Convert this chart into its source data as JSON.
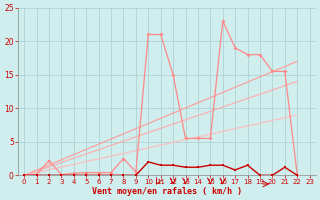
{
  "xlabel": "Vent moyen/en rafales ( km/h )",
  "xlim": [
    -0.5,
    23.5
  ],
  "ylim": [
    0,
    25
  ],
  "xticks": [
    0,
    1,
    2,
    3,
    4,
    5,
    6,
    7,
    8,
    9,
    10,
    11,
    12,
    13,
    14,
    15,
    16,
    17,
    18,
    19,
    20,
    21,
    22,
    23
  ],
  "yticks": [
    0,
    5,
    10,
    15,
    20,
    25
  ],
  "bg_color": "#d0eeee",
  "grid_color": "#aacccc",
  "light_x": [
    0,
    1,
    2,
    3,
    4,
    5,
    6,
    7,
    8,
    9,
    10,
    11,
    12,
    13,
    14,
    15,
    16,
    17,
    18,
    19,
    20,
    21,
    22
  ],
  "light_y": [
    0,
    0.1,
    2.2,
    0.1,
    0.3,
    0.4,
    0.4,
    0.4,
    2.5,
    0.5,
    21,
    21,
    15,
    5.5,
    5.5,
    5.5,
    23,
    19,
    18,
    18,
    15.5,
    15.5,
    0
  ],
  "light_color": "#ff8888",
  "dark_x": [
    0,
    1,
    2,
    3,
    4,
    5,
    6,
    7,
    8,
    9,
    10,
    11,
    12,
    13,
    14,
    15,
    16,
    17,
    18,
    19,
    20,
    21,
    22
  ],
  "dark_y": [
    0,
    0,
    0,
    0,
    0,
    0,
    0,
    0,
    0,
    0,
    2,
    1.5,
    1.5,
    1.2,
    1.2,
    1.5,
    1.5,
    0.8,
    1.5,
    0,
    0,
    1.2,
    0
  ],
  "dark_color": "#cc0000",
  "trend_lines": [
    {
      "x": [
        0,
        22
      ],
      "y": [
        0,
        17
      ],
      "color": "#ff9999"
    },
    {
      "x": [
        0,
        22
      ],
      "y": [
        0,
        14
      ],
      "color": "#ffaaaa"
    },
    {
      "x": [
        0,
        22
      ],
      "y": [
        0,
        9
      ],
      "color": "#ffbbbb"
    }
  ],
  "label_color": "#cc0000",
  "tick_color": "#cc0000"
}
